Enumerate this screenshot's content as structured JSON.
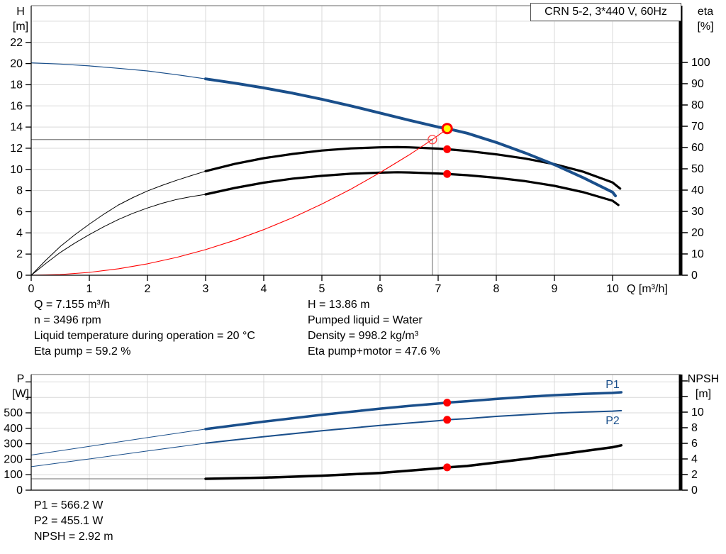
{
  "colors": {
    "blue": "#1a4f8b",
    "red": "#ff0000",
    "ring_red": "#ff4d4d",
    "yellow": "#ffff00",
    "black": "#000000",
    "grid": "#d9d9d9",
    "frame": "#9a9a9a",
    "ref": "#7f7f7f",
    "npsh_thin": "#8a8a8a"
  },
  "chart_data": [
    {
      "id": "qh-chart",
      "type": "line",
      "title": "CRN 5-2, 3*440 V, 60Hz",
      "x_axis": {
        "label": "Q [m³/h]",
        "min": 0,
        "max": 10.3,
        "ticks": [
          {
            "v": 0,
            "t": "0"
          },
          {
            "v": 1,
            "t": "1"
          },
          {
            "v": 2,
            "t": "2"
          },
          {
            "v": 3,
            "t": "3"
          },
          {
            "v": 4,
            "t": "4"
          },
          {
            "v": 5,
            "t": "5"
          },
          {
            "v": 6,
            "t": "6"
          },
          {
            "v": 7,
            "t": "7"
          },
          {
            "v": 8,
            "t": "8"
          },
          {
            "v": 9,
            "t": "9"
          },
          {
            "v": 10,
            "t": "10"
          }
        ]
      },
      "grid_x": [
        1,
        2,
        3,
        4,
        5,
        6,
        7,
        8,
        9,
        10
      ],
      "left_axis": {
        "label": "H [m]",
        "title_lines": [
          "H",
          "[m]"
        ],
        "min": 0,
        "max": 25.5,
        "grid_vals": [
          2,
          4,
          6,
          8,
          10,
          12,
          14,
          16,
          18,
          20,
          22,
          24
        ],
        "ticks": [
          {
            "v": 0,
            "t": "0"
          },
          {
            "v": 2,
            "t": "2"
          },
          {
            "v": 4,
            "t": "4"
          },
          {
            "v": 6,
            "t": "6"
          },
          {
            "v": 8,
            "t": "8"
          },
          {
            "v": 10,
            "t": "10"
          },
          {
            "v": 12,
            "t": "12"
          },
          {
            "v": 14,
            "t": "14"
          },
          {
            "v": 16,
            "t": "16"
          },
          {
            "v": 18,
            "t": "18"
          },
          {
            "v": 20,
            "t": "20"
          },
          {
            "v": 22,
            "t": "22"
          }
        ]
      },
      "right_axis": {
        "label": "eta [%]",
        "title_lines": [
          "eta",
          "[%]"
        ],
        "min": 0,
        "max": 100,
        "ticks": [
          {
            "v": 0,
            "t": "0"
          },
          {
            "v": 10,
            "t": "10"
          },
          {
            "v": 20,
            "t": "20"
          },
          {
            "v": 30,
            "t": "30"
          },
          {
            "v": 40,
            "t": "40"
          },
          {
            "v": 50,
            "t": "50"
          },
          {
            "v": 60,
            "t": "60"
          },
          {
            "v": 70,
            "t": "70"
          },
          {
            "v": 80,
            "t": "80"
          },
          {
            "v": 90,
            "t": "90"
          },
          {
            "v": 100,
            "t": "100"
          }
        ]
      },
      "series": [
        {
          "name": "eta-pump-thin",
          "axis": "right",
          "color": "black",
          "w": 1,
          "pts": [
            [
              0,
              0
            ],
            [
              0.25,
              7
            ],
            [
              0.5,
              13.5
            ],
            [
              0.75,
              19
            ],
            [
              1,
              24
            ],
            [
              1.25,
              28.7
            ],
            [
              1.5,
              33
            ],
            [
              1.75,
              36.5
            ],
            [
              2,
              39.6
            ],
            [
              2.25,
              42.2
            ],
            [
              2.5,
              44.6
            ],
            [
              2.75,
              46.8
            ],
            [
              3,
              48.9
            ]
          ]
        },
        {
          "name": "eta-pump-curve",
          "axis": "right",
          "color": "black",
          "w": 3.2,
          "pts": [
            [
              3,
              48.9
            ],
            [
              3.5,
              52.3
            ],
            [
              4,
              55
            ],
            [
              4.5,
              57
            ],
            [
              5,
              58.6
            ],
            [
              5.5,
              59.6
            ],
            [
              6,
              60.1
            ],
            [
              6.3,
              60.2
            ],
            [
              6.5,
              60.1
            ],
            [
              7,
              59.5
            ],
            [
              7.155,
              59.2
            ],
            [
              7.5,
              58.4
            ],
            [
              8,
              56.8
            ],
            [
              8.5,
              54.8
            ],
            [
              9,
              52.2
            ],
            [
              9.5,
              48.6
            ],
            [
              10,
              43.6
            ],
            [
              10.13,
              40.7
            ]
          ]
        },
        {
          "name": "eta-pump-motor-thin",
          "axis": "right",
          "color": "black",
          "w": 1,
          "pts": [
            [
              0,
              0
            ],
            [
              0.25,
              5.5
            ],
            [
              0.5,
              10.7
            ],
            [
              0.75,
              15.1
            ],
            [
              1,
              19.1
            ],
            [
              1.25,
              22.8
            ],
            [
              1.5,
              26.2
            ],
            [
              1.75,
              29.1
            ],
            [
              2,
              31.6
            ],
            [
              2.25,
              33.8
            ],
            [
              2.5,
              35.6
            ],
            [
              2.75,
              36.9
            ],
            [
              3,
              38
            ]
          ]
        },
        {
          "name": "eta-pump-motor-curve",
          "axis": "right",
          "color": "black",
          "w": 3.2,
          "pts": [
            [
              3,
              38
            ],
            [
              3.5,
              41
            ],
            [
              4,
              43.5
            ],
            [
              4.5,
              45.4
            ],
            [
              5,
              46.7
            ],
            [
              5.5,
              47.7
            ],
            [
              6,
              48.2
            ],
            [
              6.3,
              48.4
            ],
            [
              6.5,
              48.3
            ],
            [
              7,
              47.8
            ],
            [
              7.155,
              47.6
            ],
            [
              7.5,
              47
            ],
            [
              8,
              45.8
            ],
            [
              8.5,
              44.2
            ],
            [
              9,
              42
            ],
            [
              9.5,
              39
            ],
            [
              10,
              35
            ],
            [
              10.1,
              33
            ]
          ]
        },
        {
          "name": "system-curve",
          "axis": "left",
          "color": "red",
          "w": 1.1,
          "pts": [
            [
              0,
              0
            ],
            [
              0.5,
              0.07
            ],
            [
              1,
              0.27
            ],
            [
              1.5,
              0.61
            ],
            [
              2,
              1.08
            ],
            [
              2.5,
              1.68
            ],
            [
              3,
              2.42
            ],
            [
              3.5,
              3.3
            ],
            [
              4,
              4.31
            ],
            [
              4.5,
              5.45
            ],
            [
              5,
              6.73
            ],
            [
              5.5,
              8.14
            ],
            [
              6,
              9.69
            ],
            [
              6.5,
              11.37
            ],
            [
              6.9,
              12.82
            ],
            [
              7.155,
              13.82
            ]
          ]
        },
        {
          "name": "qh-curve-thin",
          "axis": "left",
          "color": "blue",
          "w": 1.2,
          "pts": [
            [
              0,
              20.07
            ],
            [
              0.5,
              19.95
            ],
            [
              1,
              19.78
            ],
            [
              1.5,
              19.55
            ],
            [
              2,
              19.3
            ],
            [
              2.5,
              18.95
            ],
            [
              3,
              18.55
            ]
          ]
        },
        {
          "name": "qh-curve",
          "axis": "left",
          "color": "blue",
          "w": 4,
          "pts": [
            [
              3,
              18.55
            ],
            [
              3.5,
              18.15
            ],
            [
              4,
              17.7
            ],
            [
              4.5,
              17.2
            ],
            [
              5,
              16.63
            ],
            [
              5.5,
              16.0
            ],
            [
              6,
              15.33
            ],
            [
              6.5,
              14.65
            ],
            [
              7,
              14.0
            ],
            [
              7.155,
              13.86
            ],
            [
              7.5,
              13.42
            ],
            [
              8,
              12.55
            ],
            [
              8.5,
              11.55
            ],
            [
              9,
              10.45
            ],
            [
              9.5,
              9.2
            ],
            [
              10,
              7.85
            ],
            [
              10.05,
              7.5
            ]
          ]
        }
      ],
      "ref_lines": [
        {
          "axis": "left",
          "x": [
            0,
            6.9
          ],
          "y": [
            12.82,
            12.82
          ]
        },
        {
          "axis": "left",
          "x": [
            6.9,
            6.9
          ],
          "y": [
            12.82,
            0
          ]
        }
      ],
      "markers": [
        {
          "type": "ring",
          "axis": "left",
          "q": 6.9,
          "v": 12.82,
          "name": "duty-point-ring"
        },
        {
          "type": "target",
          "axis": "left",
          "q": 7.155,
          "v": 13.86,
          "name": "operating-point"
        },
        {
          "type": "dot",
          "axis": "right",
          "q": 7.155,
          "v": 59.2,
          "name": "eta-pump-point"
        },
        {
          "type": "dot",
          "axis": "right",
          "q": 7.155,
          "v": 47.6,
          "name": "eta-pump-motor-point"
        }
      ],
      "annotations": []
    },
    {
      "id": "p-chart",
      "type": "line",
      "title": "",
      "x_axis": {
        "label": "",
        "min": 0,
        "max": 10.3,
        "ticks": []
      },
      "grid_x": [
        1,
        2,
        3,
        4,
        5,
        6,
        7,
        8,
        9,
        10
      ],
      "left_axis": {
        "label": "P [W]",
        "title_lines": [
          "P",
          "[W]"
        ],
        "min": 0,
        "max": 750,
        "grid_vals": [
          100,
          200,
          300,
          400,
          500,
          600,
          700
        ],
        "ticks": [
          {
            "v": 0,
            "t": "0"
          },
          {
            "v": 100,
            "t": "100"
          },
          {
            "v": 200,
            "t": "200"
          },
          {
            "v": 300,
            "t": "300"
          },
          {
            "v": 400,
            "t": "400"
          },
          {
            "v": 500,
            "t": "500"
          },
          {
            "v": 600,
            "t": ""
          },
          {
            "v": 700,
            "t": ""
          }
        ]
      },
      "right_axis": {
        "label": "NPSH [m]",
        "title_lines": [
          "NPSH",
          "[m]"
        ],
        "min": 0,
        "max": 14.8,
        "ticks": [
          {
            "v": 0,
            "t": "0"
          },
          {
            "v": 2,
            "t": "2"
          },
          {
            "v": 4,
            "t": "4"
          },
          {
            "v": 6,
            "t": "6"
          },
          {
            "v": 8,
            "t": "8"
          },
          {
            "v": 10,
            "t": "10"
          },
          {
            "v": 12,
            "t": ""
          },
          {
            "v": 14,
            "t": ""
          }
        ]
      },
      "series": [
        {
          "name": "npsh-thin",
          "axis": "right",
          "color": "npsh_thin",
          "w": 1.2,
          "pts": [
            [
              0,
              1.45
            ],
            [
              3,
              1.45
            ]
          ]
        },
        {
          "name": "npsh-curve",
          "axis": "right",
          "color": "black",
          "w": 3.5,
          "pts": [
            [
              3,
              1.45
            ],
            [
              4,
              1.6
            ],
            [
              5,
              1.85
            ],
            [
              6,
              2.2
            ],
            [
              6.5,
              2.5
            ],
            [
              7,
              2.8
            ],
            [
              7.155,
              2.92
            ],
            [
              7.5,
              3.1
            ],
            [
              8,
              3.55
            ],
            [
              8.5,
              4.0
            ],
            [
              9,
              4.5
            ],
            [
              9.5,
              5.0
            ],
            [
              10,
              5.5
            ],
            [
              10.15,
              5.75
            ]
          ]
        },
        {
          "name": "p2-thin",
          "axis": "left",
          "color": "blue",
          "w": 1,
          "pts": [
            [
              0,
              152
            ],
            [
              1,
              202
            ],
            [
              2,
              253
            ],
            [
              3,
              304
            ]
          ]
        },
        {
          "name": "p2-curve",
          "axis": "left",
          "color": "blue",
          "w": 2,
          "pts": [
            [
              3,
              304
            ],
            [
              4,
              346
            ],
            [
              5,
              384
            ],
            [
              6,
              419
            ],
            [
              6.5,
              434
            ],
            [
              7,
              449
            ],
            [
              7.155,
              455.1
            ],
            [
              7.5,
              463
            ],
            [
              8,
              477
            ],
            [
              8.5,
              488
            ],
            [
              9,
              498
            ],
            [
              9.5,
              505
            ],
            [
              10,
              511
            ],
            [
              10.15,
              514
            ]
          ]
        },
        {
          "name": "p1-thin",
          "axis": "left",
          "color": "blue",
          "w": 1,
          "pts": [
            [
              0,
              227
            ],
            [
              1,
              283
            ],
            [
              2,
              340
            ],
            [
              3,
              395
            ]
          ]
        },
        {
          "name": "p1-curve",
          "axis": "left",
          "color": "blue",
          "w": 3.5,
          "pts": [
            [
              3,
              395
            ],
            [
              4,
              443
            ],
            [
              5,
              487
            ],
            [
              6,
              527
            ],
            [
              6.5,
              545
            ],
            [
              7,
              560
            ],
            [
              7.155,
              566.2
            ],
            [
              7.5,
              575
            ],
            [
              8,
              590
            ],
            [
              8.5,
              603
            ],
            [
              9,
              614
            ],
            [
              9.5,
              623
            ],
            [
              10,
              629
            ],
            [
              10.15,
              633
            ]
          ]
        }
      ],
      "ref_lines": [],
      "markers": [
        {
          "type": "dot",
          "axis": "left",
          "q": 7.155,
          "v": 566.2,
          "name": "p1-point"
        },
        {
          "type": "dot",
          "axis": "left",
          "q": 7.155,
          "v": 455.1,
          "name": "p2-point"
        },
        {
          "type": "dot",
          "axis": "right",
          "q": 7.155,
          "v": 2.92,
          "name": "npsh-point"
        }
      ],
      "annotations": [
        {
          "text": "P1",
          "q": 9.88,
          "v": 661,
          "axis": "left",
          "color": "blue"
        },
        {
          "text": "P2",
          "q": 9.88,
          "v": 427,
          "axis": "left",
          "color": "blue"
        }
      ]
    }
  ],
  "info_top": {
    "col1": [
      "Q = 7.155 m³/h",
      "n = 3496 rpm",
      "Liquid temperature during operation = 20 °C",
      "Eta pump = 59.2 %"
    ],
    "col2": [
      "H = 13.86 m",
      "Pumped liquid = Water",
      "Density = 998.2 kg/m³",
      "Eta pump+motor = 47.6 %"
    ]
  },
  "info_bottom": [
    "P1 = 566.2 W",
    "P2 = 455.1 W",
    "NPSH = 2.92 m"
  ]
}
